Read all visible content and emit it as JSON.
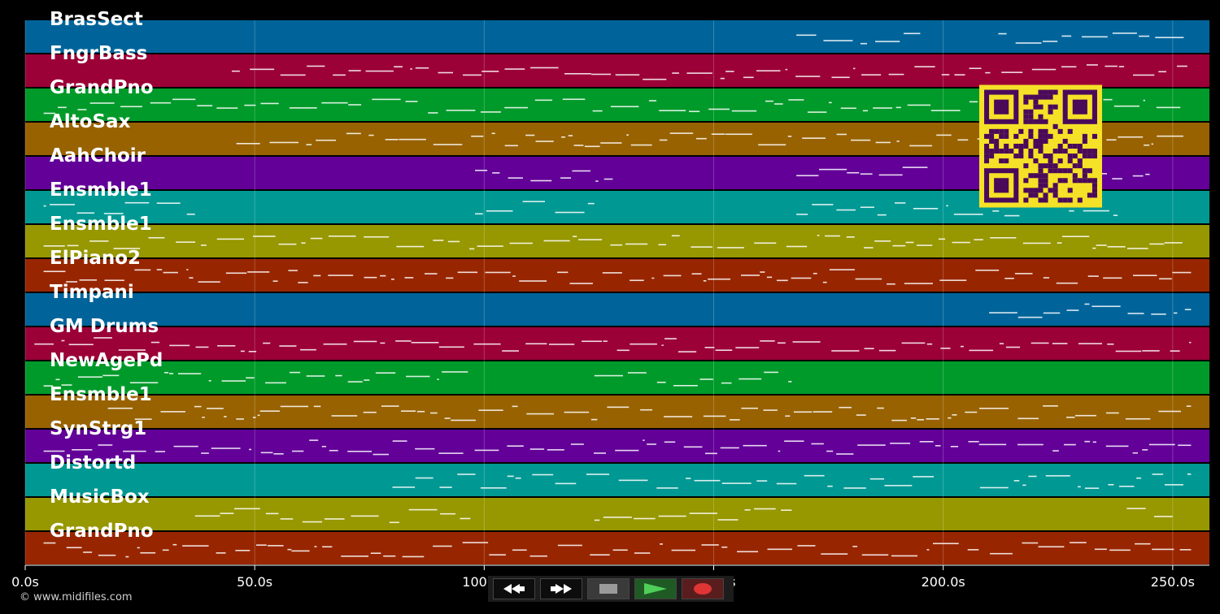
{
  "tracks": [
    {
      "name": "BrasSect",
      "color": "#00649a"
    },
    {
      "name": "FngrBass",
      "color": "#9b0036"
    },
    {
      "name": "GrandPno",
      "color": "#009a2a"
    },
    {
      "name": "AltoSax",
      "color": "#986200"
    },
    {
      "name": "AahChoir",
      "color": "#620098"
    },
    {
      "name": "Ensmble1",
      "color": "#009893"
    },
    {
      "name": "Ensmble1",
      "color": "#979700"
    },
    {
      "name": "ElPiano2",
      "color": "#972600"
    },
    {
      "name": "Timpani",
      "color": "#00649a"
    },
    {
      "name": "GM Drums",
      "color": "#9b0036"
    },
    {
      "name": "NewAgePd",
      "color": "#009a2a"
    },
    {
      "name": "Ensmble1",
      "color": "#986200"
    },
    {
      "name": "SynStrg1",
      "color": "#620098"
    },
    {
      "name": "Distortd",
      "color": "#009893"
    },
    {
      "name": "MusicBox",
      "color": "#979700"
    },
    {
      "name": "GrandPno",
      "color": "#972600"
    }
  ],
  "timeline": {
    "ticks": [
      "0.0s",
      "50.0s",
      "100.0s",
      "150.0s",
      "200.0s",
      "250.0s"
    ],
    "tick_values": [
      0,
      50,
      100,
      150,
      200,
      250
    ],
    "max_seconds": 258
  },
  "transport": {
    "rewind_icon": "rewind-icon",
    "forward_icon": "fast-forward-icon",
    "stop_icon": "stop-icon",
    "play_icon": "play-icon",
    "record_icon": "record-icon"
  },
  "copyright": "© www.midifiles.com",
  "qr_colors": {
    "bg": "#f5e127",
    "fg": "#4a0a5a"
  }
}
